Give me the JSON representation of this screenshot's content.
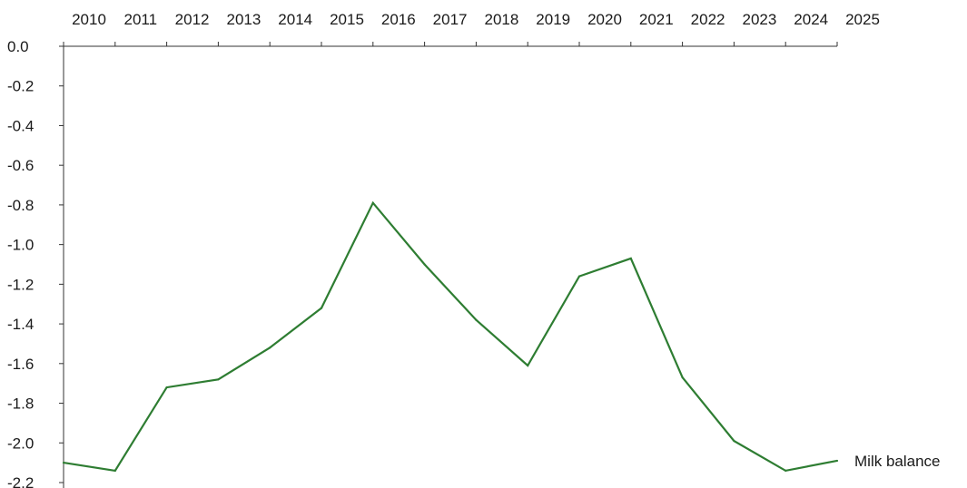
{
  "chart_data": {
    "type": "line",
    "x": [
      "2010",
      "2011",
      "2012",
      "2013",
      "2014",
      "2015",
      "2016",
      "2017",
      "2018",
      "2019",
      "2020",
      "2021",
      "2022",
      "2023",
      "2024",
      "2025"
    ],
    "series": [
      {
        "name": "Milk balance",
        "values": [
          -2.1,
          -2.14,
          -1.72,
          -1.68,
          -1.52,
          -1.32,
          -0.79,
          -1.1,
          -1.38,
          -1.61,
          -1.16,
          -1.07,
          -1.67,
          -1.99,
          -2.14,
          -2.09
        ],
        "color": "#2e7d32"
      }
    ],
    "ylim": [
      -2.2,
      0.0
    ],
    "yticks": [
      "0.0",
      "-0.2",
      "-0.4",
      "-0.6",
      "-0.8",
      "-1.0",
      "-1.2",
      "-1.4",
      "-1.6",
      "-1.8",
      "-2.0",
      "-2.2"
    ],
    "x_axis_position": "top",
    "grid": false,
    "legend": "series label at end of line"
  }
}
